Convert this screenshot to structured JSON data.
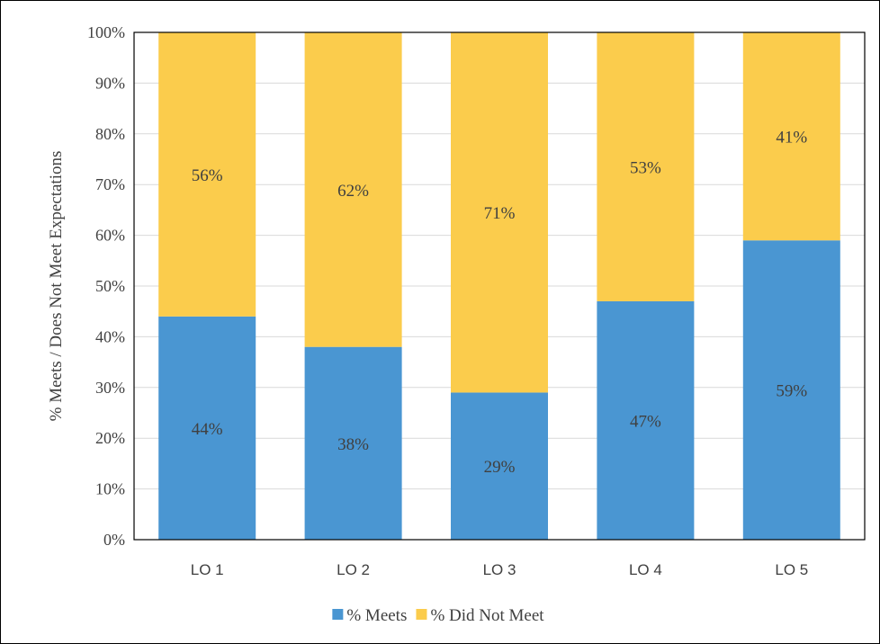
{
  "chart_data": {
    "type": "bar",
    "stacked": true,
    "categories": [
      "LO 1",
      "LO 2",
      "LO 3",
      "LO 4",
      "LO 5"
    ],
    "series": [
      {
        "name": "% Meets",
        "values": [
          44,
          38,
          29,
          47,
          59
        ],
        "labels": [
          "44%",
          "38%",
          "29%",
          "47%",
          "59%"
        ],
        "color": "#4A96D2"
      },
      {
        "name": "% Did Not Meet",
        "values": [
          56,
          62,
          71,
          53,
          41
        ],
        "labels": [
          "56%",
          "62%",
          "71%",
          "53%",
          "41%"
        ],
        "color": "#FBCC4C"
      }
    ],
    "ylabel": "% Meets / Does Not Meet Expectations",
    "ylim": [
      0,
      100
    ],
    "yticks": [
      "0%",
      "10%",
      "20%",
      "30%",
      "40%",
      "50%",
      "60%",
      "70%",
      "80%",
      "90%",
      "100%"
    ],
    "grid": true,
    "legend_position": "bottom"
  }
}
